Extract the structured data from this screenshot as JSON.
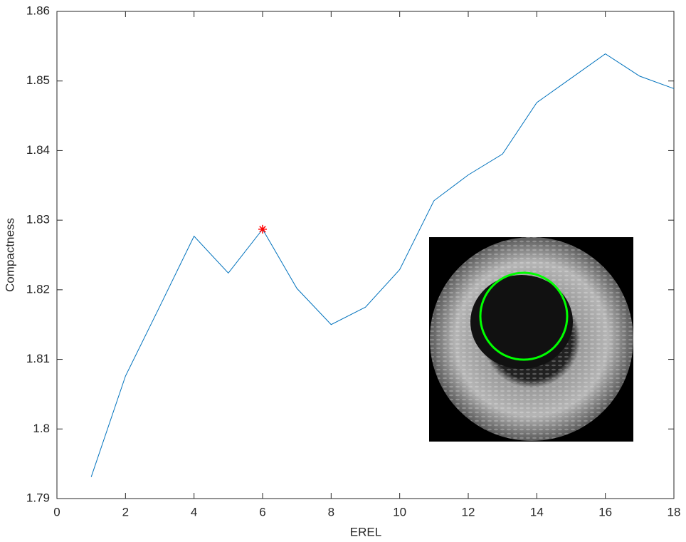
{
  "chart_data": {
    "type": "line",
    "x_label": "EREL",
    "y_label": "Compactness",
    "x": [
      1,
      2,
      3,
      4,
      5,
      6,
      7,
      8,
      9,
      10,
      11,
      12,
      13,
      14,
      15,
      16,
      17,
      18
    ],
    "series": [
      {
        "color": "#0072bd",
        "values": [
          1.7931,
          1.8076,
          1.8176,
          1.8277,
          1.8224,
          1.8287,
          1.8202,
          1.815,
          1.8175,
          1.8229,
          1.8328,
          1.8365,
          1.8395,
          1.8469,
          1.8504,
          1.8539,
          1.8507,
          1.8489
        ]
      }
    ],
    "highlight": {
      "x": 6,
      "y": 1.8287,
      "color": "#ff0000"
    },
    "xlim": [
      0,
      18
    ],
    "xticks": [
      0,
      2,
      4,
      6,
      8,
      10,
      12,
      14,
      16,
      18
    ],
    "ylim": [
      1.79,
      1.86
    ],
    "yticks": [
      1.79,
      1.8,
      1.81,
      1.82,
      1.83,
      1.84,
      1.85,
      1.86
    ]
  }
}
